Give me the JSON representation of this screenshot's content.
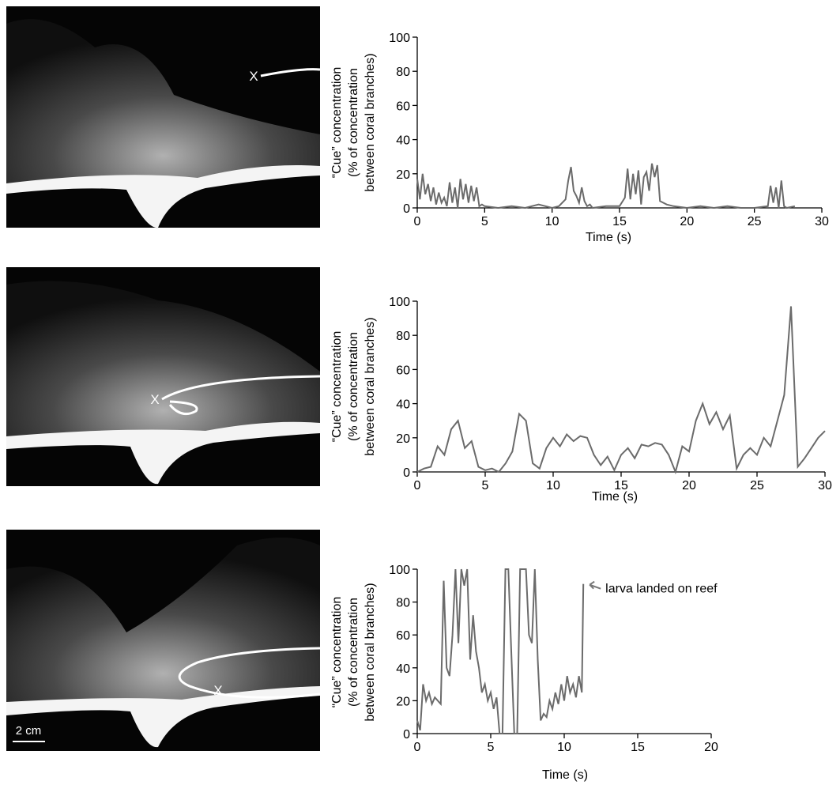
{
  "panels": [
    {
      "marker": "X"
    },
    {
      "marker": "X"
    },
    {
      "marker": "X",
      "scale_bar": "2 cm"
    }
  ],
  "chart_data": [
    {
      "type": "line",
      "y_label": [
        "“Cue” concentration",
        "(% of concentration",
        "between coral branches)"
      ],
      "x_label": "Time (s)",
      "color": "#6b6b6b",
      "xlim": [
        0,
        30
      ],
      "ylim": [
        0,
        100
      ],
      "xticks": [
        0,
        5,
        10,
        15,
        20,
        25,
        30
      ],
      "yticks": [
        0,
        20,
        40,
        60,
        80,
        100
      ],
      "x": [
        0,
        0.2,
        0.4,
        0.6,
        0.8,
        1.0,
        1.2,
        1.4,
        1.6,
        1.8,
        2.0,
        2.2,
        2.4,
        2.6,
        2.8,
        3.0,
        3.2,
        3.4,
        3.6,
        3.8,
        4.0,
        4.2,
        4.4,
        4.6,
        4.8,
        5.0,
        6,
        7,
        8,
        9,
        10,
        10.5,
        11,
        11.2,
        11.4,
        11.6,
        11.8,
        12,
        12.2,
        12.4,
        12.6,
        12.8,
        13,
        14,
        15,
        15.4,
        15.6,
        15.8,
        16,
        16.2,
        16.4,
        16.6,
        16.8,
        17,
        17.2,
        17.4,
        17.6,
        17.8,
        18,
        18.5,
        19,
        20,
        21,
        22,
        23,
        24,
        25,
        26,
        26.2,
        26.4,
        26.6,
        26.8,
        27,
        27.2,
        27.4,
        28
      ],
      "values": [
        17,
        5,
        20,
        8,
        14,
        4,
        12,
        2,
        9,
        3,
        6,
        1,
        15,
        3,
        12,
        0,
        17,
        5,
        14,
        3,
        13,
        4,
        12,
        1,
        2,
        1,
        0,
        1,
        0,
        2,
        0,
        1,
        5,
        16,
        24,
        10,
        7,
        3,
        12,
        4,
        1,
        2,
        0,
        1,
        1,
        6,
        23,
        5,
        20,
        8,
        22,
        2,
        18,
        21,
        10,
        26,
        18,
        25,
        4,
        2,
        1,
        0,
        1,
        0,
        1,
        0,
        0,
        1,
        13,
        3,
        12,
        0,
        16,
        1,
        0,
        1
      ]
    },
    {
      "type": "line",
      "y_label": [
        "“Cue” concentration",
        "(% of concentration",
        "between coral branches)"
      ],
      "x_label": "Time (s)",
      "color": "#6b6b6b",
      "xlim": [
        0,
        30
      ],
      "ylim": [
        0,
        100
      ],
      "xticks": [
        0,
        5,
        10,
        15,
        20,
        25,
        30
      ],
      "yticks": [
        0,
        20,
        40,
        60,
        80,
        100
      ],
      "x": [
        0,
        0.5,
        1,
        1.5,
        2,
        2.5,
        3,
        3.5,
        4,
        4.5,
        5,
        5.5,
        6,
        6.5,
        7,
        7.5,
        8,
        8.5,
        9,
        9.5,
        10,
        10.5,
        11,
        11.5,
        12,
        12.5,
        13,
        13.5,
        14,
        14.5,
        15,
        15.5,
        16,
        16.5,
        17,
        17.5,
        18,
        18.5,
        19,
        19.5,
        20,
        20.5,
        21,
        21.5,
        22,
        22.5,
        23,
        23.5,
        24,
        24.5,
        25,
        25.5,
        26,
        26.5,
        27,
        27.5,
        28,
        28.5,
        29,
        29.5,
        30
      ],
      "values": [
        0,
        2,
        3,
        15,
        10,
        25,
        30,
        14,
        18,
        3,
        1,
        2,
        0,
        5,
        12,
        34,
        30,
        5,
        2,
        14,
        20,
        15,
        22,
        18,
        21,
        20,
        10,
        4,
        9,
        1,
        10,
        14,
        8,
        16,
        15,
        17,
        16,
        10,
        0,
        15,
        12,
        30,
        40,
        28,
        35,
        25,
        33,
        2,
        10,
        14,
        10,
        20,
        15,
        30,
        45,
        97,
        3,
        8,
        14,
        20,
        24
      ]
    },
    {
      "type": "line",
      "y_label": [
        "“Cue” concentration",
        "(% of concentration",
        "between coral branches)"
      ],
      "x_label": "Time (s)",
      "color": "#6b6b6b",
      "annotation": "larva landed on reef",
      "xlim": [
        0,
        20
      ],
      "ylim": [
        0,
        100
      ],
      "xticks": [
        0,
        5,
        10,
        15,
        20
      ],
      "yticks": [
        0,
        20,
        40,
        60,
        80,
        100
      ],
      "x": [
        0,
        0.2,
        0.4,
        0.6,
        0.8,
        1.0,
        1.2,
        1.4,
        1.6,
        1.8,
        2.0,
        2.2,
        2.4,
        2.6,
        2.8,
        3.0,
        3.2,
        3.4,
        3.6,
        3.8,
        4.0,
        4.2,
        4.4,
        4.6,
        4.8,
        5.0,
        5.2,
        5.4,
        5.6,
        5.8,
        6.0,
        6.2,
        6.4,
        6.6,
        6.8,
        7.0,
        7.2,
        7.4,
        7.6,
        7.8,
        8.0,
        8.2,
        8.4,
        8.6,
        8.8,
        9.0,
        9.2,
        9.4,
        9.6,
        9.8,
        10.0,
        10.2,
        10.4,
        10.6,
        10.8,
        11.0,
        11.2,
        11.3
      ],
      "values": [
        8,
        2,
        30,
        20,
        25,
        18,
        22,
        20,
        18,
        93,
        40,
        35,
        60,
        100,
        55,
        100,
        90,
        100,
        45,
        72,
        50,
        40,
        25,
        30,
        20,
        25,
        15,
        22,
        0,
        0,
        100,
        100,
        50,
        0,
        0,
        100,
        100,
        100,
        60,
        55,
        100,
        45,
        8,
        12,
        10,
        20,
        15,
        25,
        18,
        30,
        20,
        35,
        25,
        30,
        22,
        35,
        25,
        91
      ]
    }
  ]
}
